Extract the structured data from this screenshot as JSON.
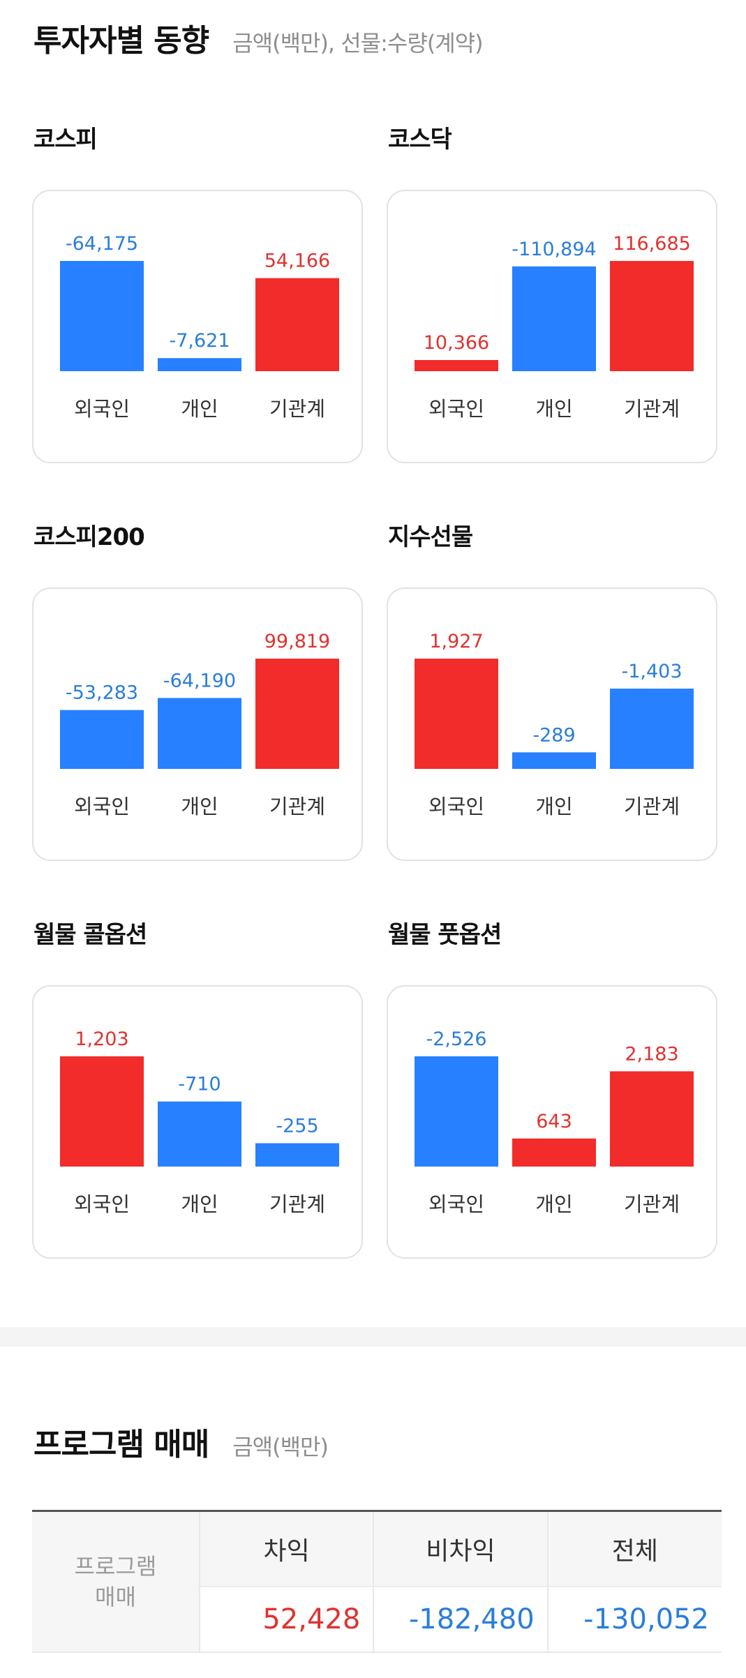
{
  "investor_section": {
    "title": "투자자별 동향",
    "subtitle": "금액(백만), 선물:수량(계약)"
  },
  "colors": {
    "buy": "#f22b2b",
    "sell": "#2680ff",
    "buy_text": "#e0322f",
    "sell_text": "#2a7dd9"
  },
  "chart_data": [
    {
      "type": "bar",
      "title": "코스피",
      "categories": [
        "외국인",
        "개인",
        "기관계"
      ],
      "values": [
        -64175,
        -7621,
        54166
      ],
      "value_labels": [
        "-64,175",
        "-7,621",
        "54,166"
      ]
    },
    {
      "type": "bar",
      "title": "코스닥",
      "categories": [
        "외국인",
        "개인",
        "기관계"
      ],
      "values": [
        10366,
        -110894,
        116685
      ],
      "value_labels": [
        "10,366",
        "-110,894",
        "116,685"
      ]
    },
    {
      "type": "bar",
      "title": "코스피200",
      "categories": [
        "외국인",
        "개인",
        "기관계"
      ],
      "values": [
        -53283,
        -64190,
        99819
      ],
      "value_labels": [
        "-53,283",
        "-64,190",
        "99,819"
      ]
    },
    {
      "type": "bar",
      "title": "지수선물",
      "categories": [
        "외국인",
        "개인",
        "기관계"
      ],
      "values": [
        1927,
        -289,
        -1403
      ],
      "value_labels": [
        "1,927",
        "-289",
        "-1,403"
      ]
    },
    {
      "type": "bar",
      "title": "월물 콜옵션",
      "categories": [
        "외국인",
        "개인",
        "기관계"
      ],
      "values": [
        1203,
        -710,
        -255
      ],
      "value_labels": [
        "1,203",
        "-710",
        "-255"
      ]
    },
    {
      "type": "bar",
      "title": "월물 풋옵션",
      "categories": [
        "외국인",
        "개인",
        "기관계"
      ],
      "values": [
        -2526,
        643,
        2183
      ],
      "value_labels": [
        "-2,526",
        "643",
        "2,183"
      ]
    }
  ],
  "program_section": {
    "title": "프로그램 매매",
    "subtitle": "금액(백만)",
    "row_label_line1": "프로그램",
    "row_label_line2": "매매",
    "columns": [
      "차익",
      "비차익",
      "전체"
    ],
    "values": [
      "52,428",
      "-182,480",
      "-130,052"
    ],
    "value_signs": [
      "up",
      "down",
      "down"
    ]
  }
}
